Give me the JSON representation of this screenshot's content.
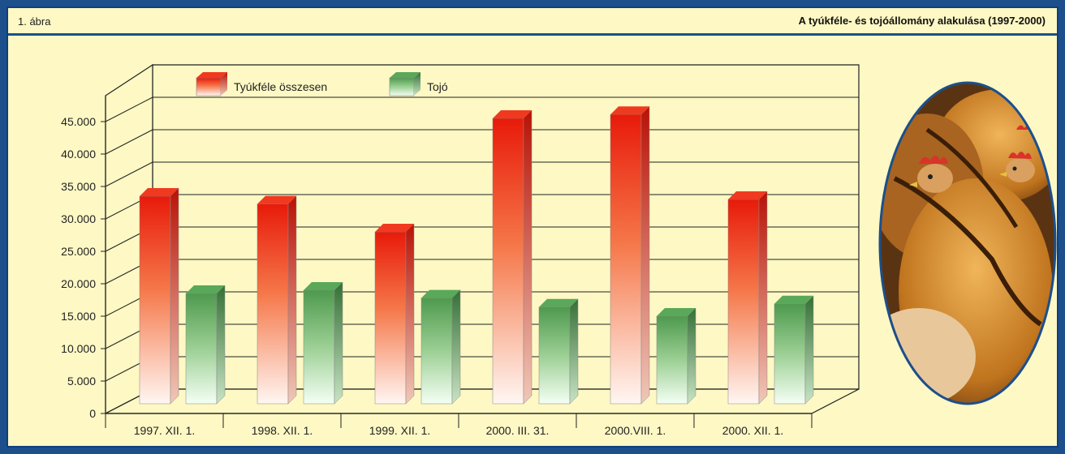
{
  "header": {
    "figure_number": "1. ábra",
    "title": "A tyúkféle- és tojóállomány alakulása (1997-2000)"
  },
  "chart_data": {
    "type": "bar",
    "title": "A tyúkféle- és tojóállomány alakulása (1997-2000)",
    "categories": [
      "1997. XII. 1.",
      "1998. XII. 1.",
      "1999. XII. 1.",
      "2000. III. 31.",
      "2000.VIII. 1.",
      "2000. XII. 1."
    ],
    "series": [
      {
        "name": "Tyúkféle összesen",
        "values": [
          32000,
          30800,
          26500,
          44000,
          44600,
          31500
        ]
      },
      {
        "name": "Tojó",
        "values": [
          17000,
          17500,
          16300,
          14900,
          13500,
          15400
        ]
      }
    ],
    "y_ticks": [
      "0",
      "5.000",
      "10.000",
      "15.000",
      "20.000",
      "25.000",
      "30.000",
      "35.000",
      "40.000",
      "45.000"
    ],
    "ylim": [
      0,
      45000
    ],
    "grid": true,
    "legend_position": "top-left",
    "colors": {
      "series1_top": "#e81a0a",
      "series1_bottom": "#fff4ee",
      "series2_top": "#4e9a4e",
      "series2_bottom": "#f4fff4",
      "grid": "#222222",
      "background": "#fdf8c4"
    }
  },
  "photo": {
    "icon": "hens-photo"
  }
}
